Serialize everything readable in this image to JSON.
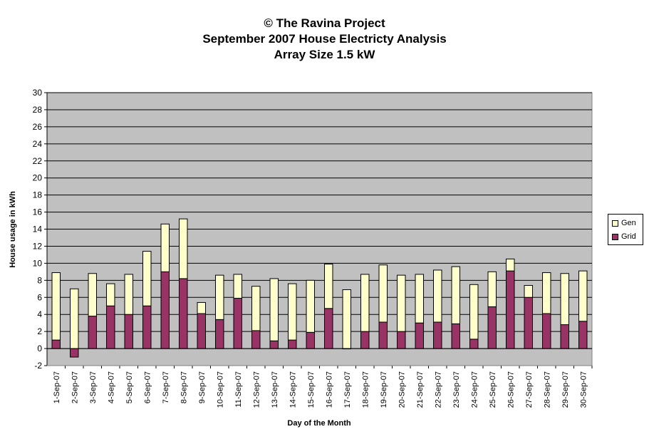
{
  "chart_data": {
    "type": "bar",
    "stacked": true,
    "title": "© The Ravina Project",
    "subtitle": "September 2007 House Electricty Analysis",
    "subtitle2": "Array Size 1.5 kW",
    "xlabel": "Day of the Month",
    "ylabel": "House usage in kWh",
    "ylim": [
      -2,
      30
    ],
    "yticks": [
      -2,
      0,
      2,
      4,
      6,
      8,
      10,
      12,
      14,
      16,
      18,
      20,
      22,
      24,
      26,
      28,
      30
    ],
    "grid": true,
    "legend_position": "right",
    "categories": [
      "1-Sep-07",
      "2-Sep-07",
      "3-Sep-07",
      "4-Sep-07",
      "5-Sep-07",
      "6-Sep-07",
      "7-Sep-07",
      "8-Sep-07",
      "9-Sep-07",
      "10-Sep-07",
      "11-Sep-07",
      "12-Sep-07",
      "13-Sep-07",
      "14-Sep-07",
      "15-Sep-07",
      "16-Sep-07",
      "17-Sep-07",
      "18-Sep-07",
      "19-Sep-07",
      "20-Sep-07",
      "21-Sep-07",
      "22-Sep-07",
      "23-Sep-07",
      "24-Sep-07",
      "25-Sep-07",
      "26-Sep-07",
      "27-Sep-07",
      "28-Sep-07",
      "29-Sep-07",
      "30-Sep-07"
    ],
    "series": [
      {
        "name": "Grid",
        "color": "#993366",
        "values": [
          1.0,
          -1.0,
          3.8,
          5.0,
          4.0,
          5.0,
          9.0,
          8.2,
          4.1,
          3.4,
          5.9,
          2.1,
          0.9,
          1.0,
          1.9,
          4.7,
          0.0,
          2.0,
          3.1,
          2.0,
          3.0,
          3.1,
          2.9,
          1.1,
          4.9,
          9.1,
          6.0,
          4.1,
          2.8,
          3.2
        ]
      },
      {
        "name": "Gen",
        "color": "#FFFFCC",
        "values": [
          7.9,
          7.0,
          5.0,
          2.6,
          4.7,
          6.4,
          5.6,
          7.0,
          1.3,
          5.2,
          2.8,
          5.2,
          7.3,
          6.6,
          6.1,
          5.2,
          6.9,
          6.7,
          6.7,
          6.6,
          5.7,
          6.1,
          6.7,
          6.4,
          4.1,
          1.4,
          1.4,
          4.8,
          6.0,
          5.9
        ]
      }
    ],
    "plot_background": "#C0C0C0",
    "gen_color": "#FFFFCC",
    "grid_color": "#000000"
  }
}
